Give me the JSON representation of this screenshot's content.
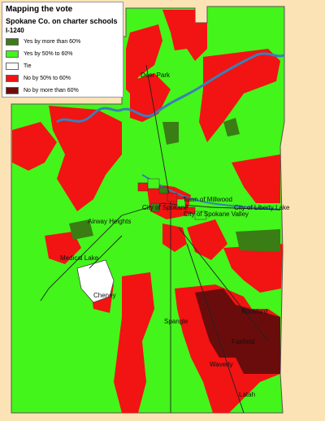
{
  "legend": {
    "title": "Mapping the vote",
    "subtitle": "Spokane Co. on charter schools",
    "measure": "I-1240",
    "items": [
      {
        "label": "Yes by more than 60%",
        "color": "#3a7d14"
      },
      {
        "label": "Yes by 50% to 60%",
        "color": "#43f51a"
      },
      {
        "label": "Tie",
        "color": "#ffffff"
      },
      {
        "label": "No by 50% to 60%",
        "color": "#f21313"
      },
      {
        "label": "No by more than 60%",
        "color": "#6b0c0c"
      }
    ]
  },
  "places": [
    {
      "name": "Deer Park"
    },
    {
      "name": "Town of Millwood"
    },
    {
      "name": "City of Spokane"
    },
    {
      "name": "City of Liberty Lake"
    },
    {
      "name": "City of Spokane Valley"
    },
    {
      "name": "Airway Heights"
    },
    {
      "name": "Medical Lake"
    },
    {
      "name": "Cheney"
    },
    {
      "name": "Spangle"
    },
    {
      "name": "Rockford"
    },
    {
      "name": "Fairfield"
    },
    {
      "name": "Waverly"
    },
    {
      "name": "Latah"
    }
  ],
  "colors": {
    "background": "#fbe3b5",
    "river": "#3a7fb7"
  }
}
